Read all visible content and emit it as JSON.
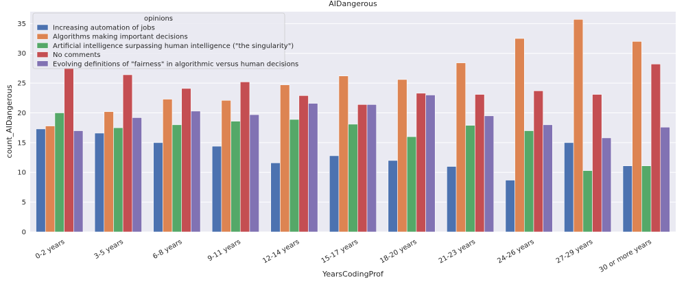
{
  "chart_data": {
    "type": "bar",
    "title": "AIDangerous",
    "xlabel": "YearsCodingProf",
    "ylabel": "count_AIDangerous",
    "ylim": [
      0,
      37
    ],
    "yticks": [
      0,
      5,
      10,
      15,
      20,
      25,
      30,
      35
    ],
    "grid": true,
    "legend_title": "opinions",
    "legend_position": "top-left",
    "categories": [
      "0-2 years",
      "3-5 years",
      "6-8 years",
      "9-11 years",
      "12-14 years",
      "15-17 years",
      "18-20 years",
      "21-23 years",
      "24-26 years",
      "27-29 years",
      "30 or more years"
    ],
    "series": [
      {
        "name": "Increasing automation of jobs",
        "color": "#4c72b0",
        "values": [
          17.3,
          16.6,
          15.0,
          14.4,
          11.6,
          12.8,
          12.0,
          11.0,
          8.7,
          15.0,
          11.1
        ]
      },
      {
        "name": "Algorithms making important decisions",
        "color": "#dd8452",
        "values": [
          17.8,
          20.2,
          22.3,
          22.1,
          24.7,
          26.2,
          25.6,
          28.4,
          32.5,
          35.7,
          32.0
        ]
      },
      {
        "name": "Artificial intelligence surpassing human intelligence (\"the singularity\")",
        "color": "#55a868",
        "values": [
          20.0,
          17.5,
          18.0,
          18.6,
          18.9,
          18.1,
          16.0,
          17.9,
          17.0,
          10.3,
          11.1
        ]
      },
      {
        "name": "No comments",
        "color": "#c44e52",
        "values": [
          27.6,
          26.4,
          24.1,
          25.2,
          22.9,
          21.4,
          23.3,
          23.1,
          23.7,
          23.1,
          28.2
        ]
      },
      {
        "name": "Evolving definitions of \"fairness\" in algorithmic versus human decisions",
        "color": "#8172b3",
        "values": [
          17.0,
          19.2,
          20.3,
          19.7,
          21.6,
          21.4,
          23.0,
          19.5,
          18.0,
          15.8,
          17.6
        ]
      }
    ],
    "plot_background": "#eaeaf2",
    "grid_color": "#ffffff"
  }
}
